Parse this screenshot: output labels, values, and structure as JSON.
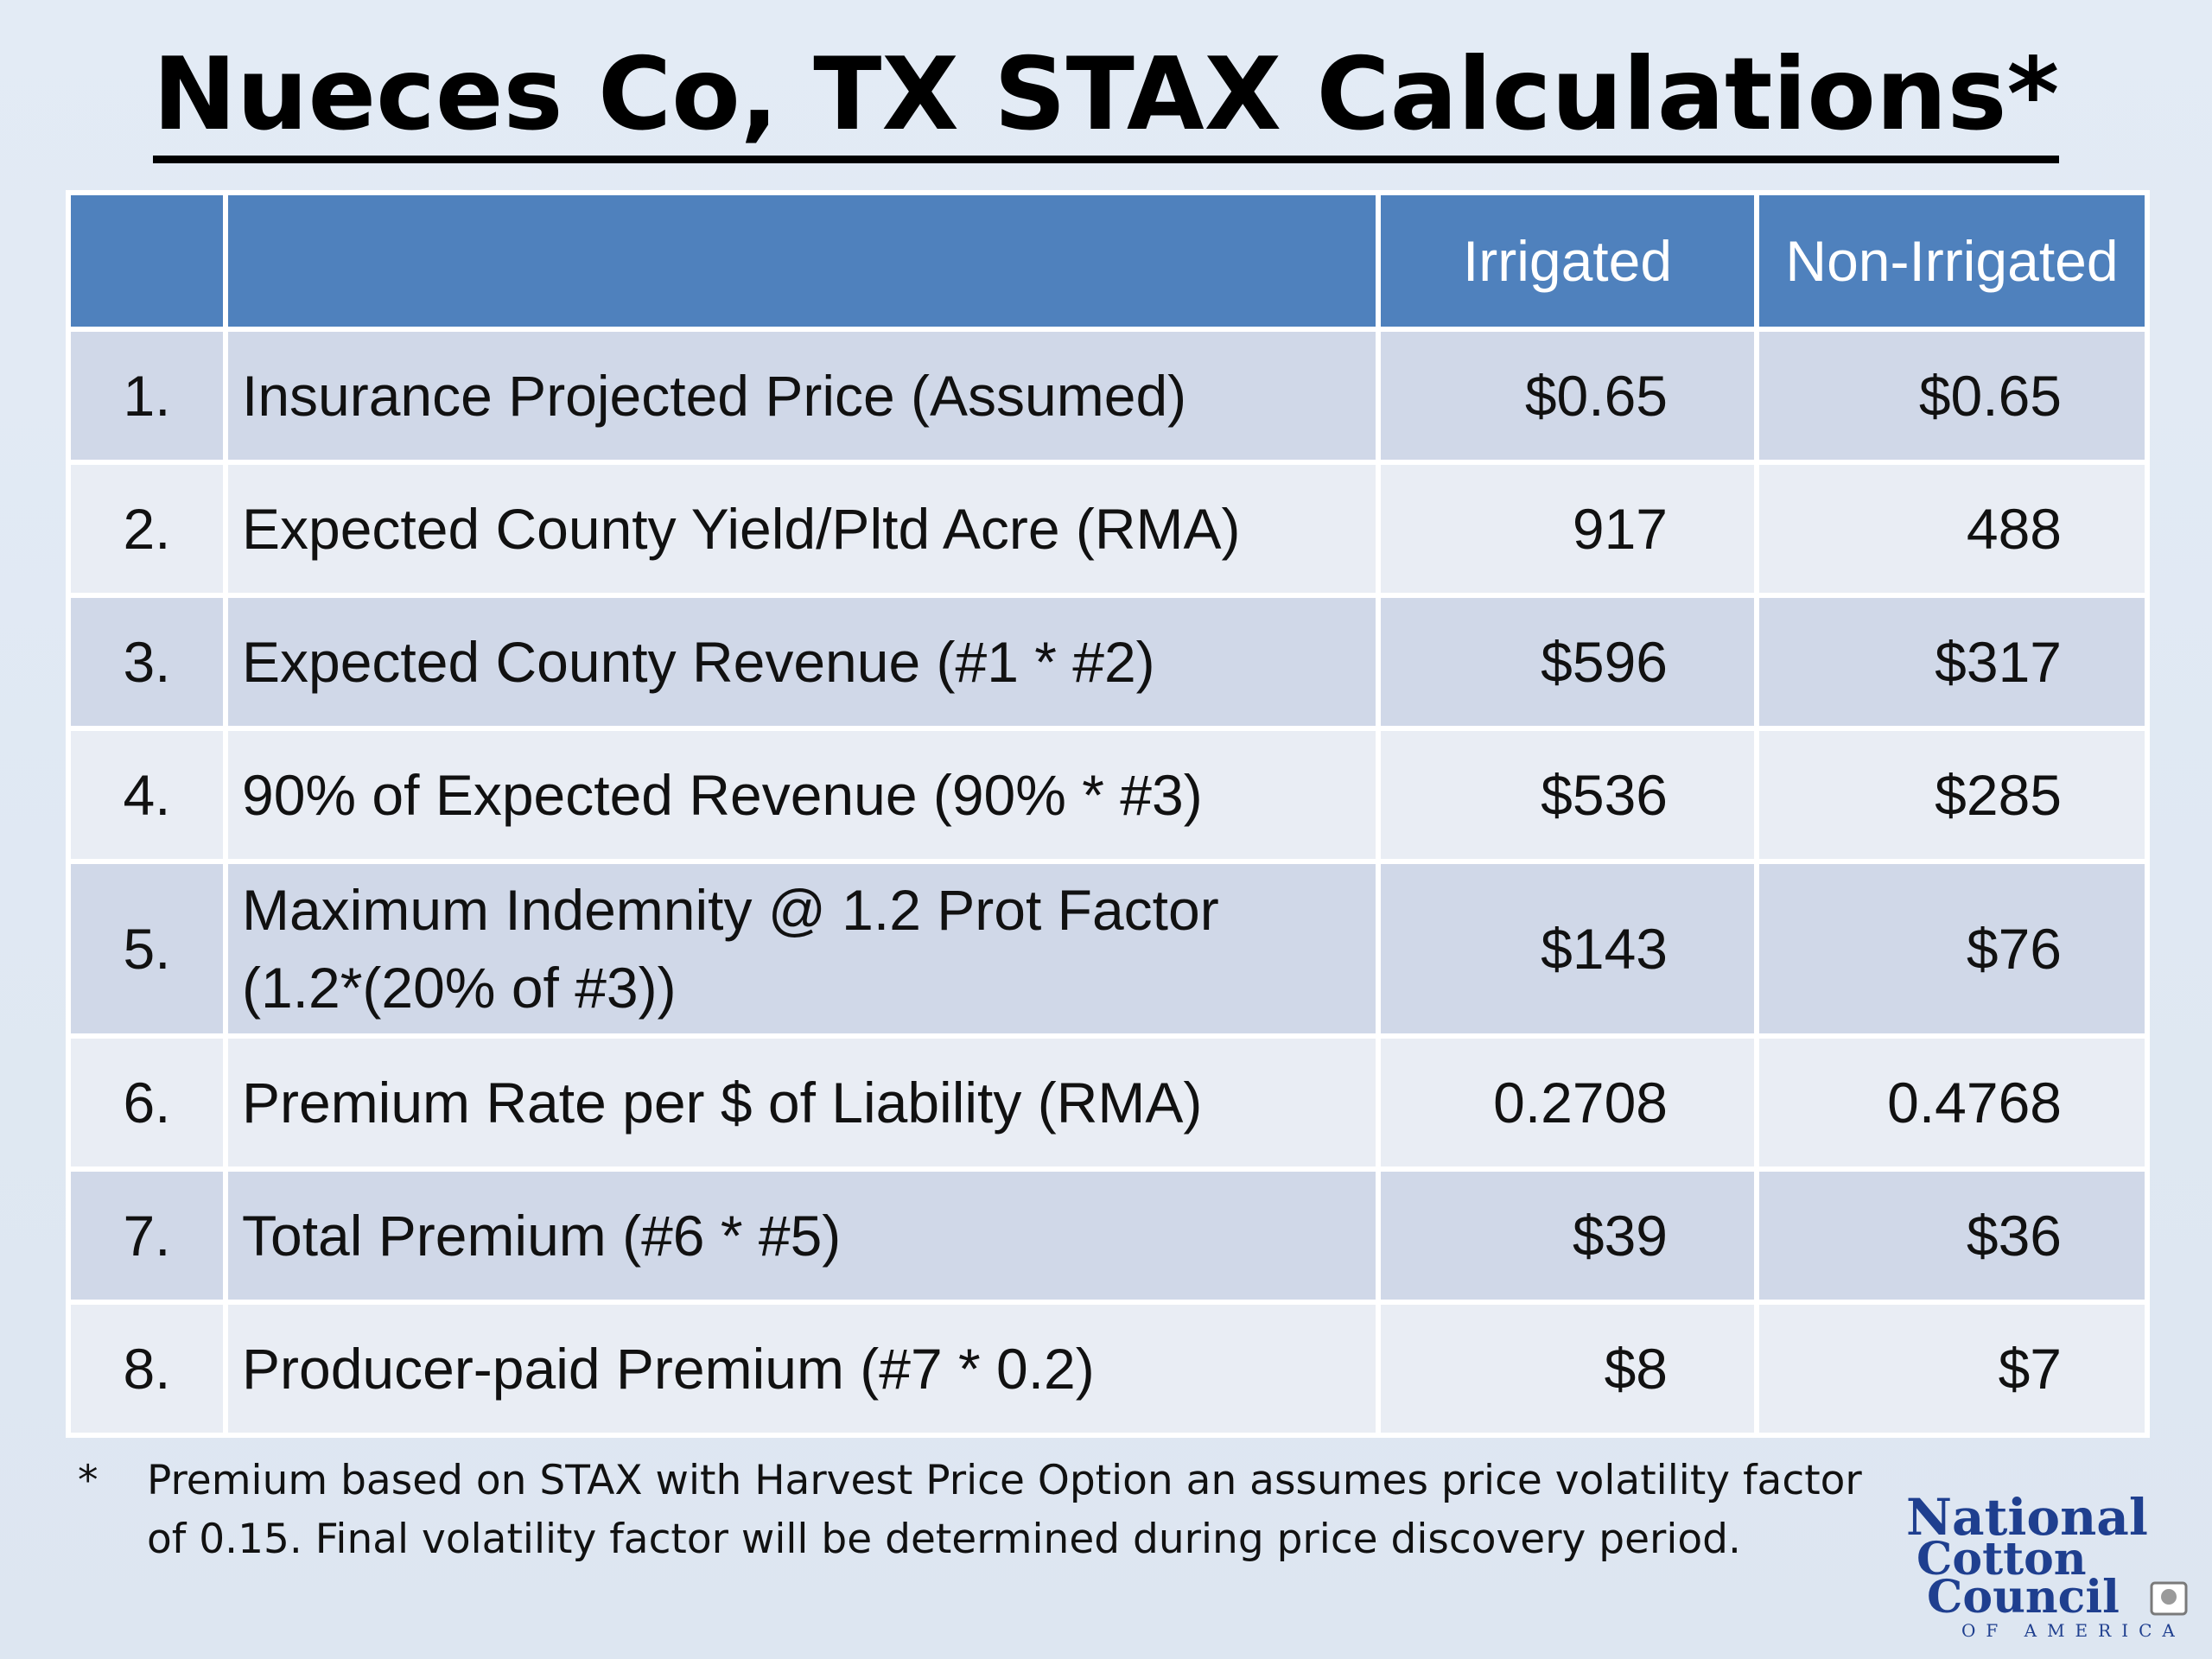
{
  "title": "Nueces Co, TX STAX Calculations*",
  "table": {
    "headers": [
      "",
      "",
      "Irrigated",
      "Non-Irrigated"
    ],
    "rows": [
      {
        "num": "1.",
        "label": "Insurance Projected Price (Assumed)",
        "irrigated": "$0.65",
        "non_irrigated": "$0.65"
      },
      {
        "num": "2.",
        "label": "Expected County Yield/Pltd Acre (RMA)",
        "irrigated": "917",
        "non_irrigated": "488"
      },
      {
        "num": "3.",
        "label": "Expected County Revenue (#1 * #2)",
        "irrigated": "$596",
        "non_irrigated": "$317"
      },
      {
        "num": "4.",
        "label": "90% of Expected Revenue (90% * #3)",
        "irrigated": "$536",
        "non_irrigated": "$285"
      },
      {
        "num": "5.",
        "label": "Maximum Indemnity @ 1.2 Prot Factor",
        "label_line2": "(1.2*(20% of #3))",
        "irrigated": "$143",
        "non_irrigated": "$76"
      },
      {
        "num": "6.",
        "label": "Premium Rate per $ of Liability (RMA)",
        "irrigated": "0.2708",
        "non_irrigated": "0.4768"
      },
      {
        "num": "7.",
        "label": "Total Premium (#6 * #5)",
        "irrigated": "$39",
        "non_irrigated": "$36"
      },
      {
        "num": "8.",
        "label": "Producer-paid Premium (#7 * 0.2)",
        "irrigated": "$8",
        "non_irrigated": "$7"
      }
    ]
  },
  "footnote": {
    "marker": "*",
    "text": "Premium based on STAX with Harvest Price Option an assumes price volatility factor of 0.15. Final volatility factor will be determined during price discovery period."
  },
  "logo": {
    "line1": "National",
    "line2": "Cotton",
    "line3": "Council",
    "line4": "OF AMERICA"
  },
  "colors": {
    "header_bg": "#4f81bd",
    "row_dark": "#d0d8e8",
    "row_light": "#e9edf4",
    "logo_blue": "#1f3f8f"
  }
}
